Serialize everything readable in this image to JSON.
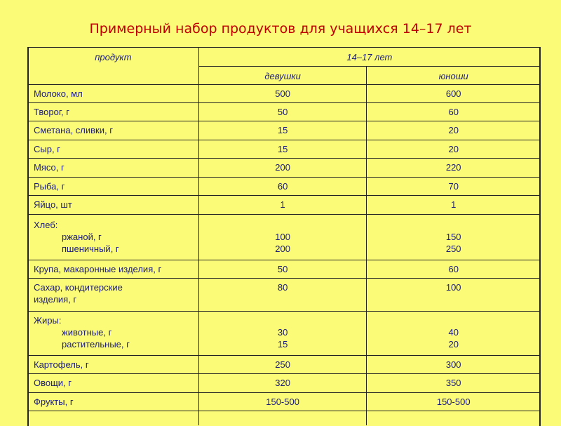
{
  "title": "Примерный набор продуктов для учащихся 14–17 лет",
  "header": {
    "product": "продукт",
    "age": "14–17 лет",
    "girls": "девушки",
    "boys": "юноши"
  },
  "rows": [
    {
      "product": "Молоко, мл",
      "girls": "500",
      "boys": "600"
    },
    {
      "product": "Творог, г",
      "girls": "50",
      "boys": "60"
    },
    {
      "product": "Сметана, сливки, г",
      "girls": "15",
      "boys": "20"
    },
    {
      "product": "Сыр, г",
      "girls": "15",
      "boys": "20"
    },
    {
      "product": "Мясо, г",
      "girls": "200",
      "boys": "220"
    },
    {
      "product": "Рыба, г",
      "girls": "60",
      "boys": "70"
    },
    {
      "product": "Яйцо, шт",
      "girls": "1",
      "boys": "1"
    }
  ],
  "bread": {
    "product": "Хлеб:",
    "sub": [
      {
        "product": "ржаной, г",
        "girls": "100",
        "boys": "150"
      },
      {
        "product": "пшеничный, г",
        "girls": "200",
        "boys": "250"
      }
    ]
  },
  "cereal": {
    "product": "Крупа, макаронные  изделия, г",
    "girls": "50",
    "boys": "60"
  },
  "sugar": {
    "product_line1": "Сахар, кондитерские",
    "product_line2": "изделия, г",
    "girls": "80",
    "boys": "100"
  },
  "fats": {
    "product": "Жиры:",
    "sub": [
      {
        "product": "животные, г",
        "girls": "30",
        "boys": "40"
      },
      {
        "product": "растительные, г",
        "girls": "15",
        "boys": "20"
      }
    ]
  },
  "rows2": [
    {
      "product": "Картофель, г",
      "girls": "250",
      "boys": "300"
    },
    {
      "product": "Овощи, г",
      "girls": "320",
      "boys": "350"
    },
    {
      "product": "Фрукты, г",
      "girls": "150-500",
      "boys": "150-500"
    }
  ],
  "colors": {
    "background": "#fbfb77",
    "title": "#c00000",
    "text": "#1c1c7a"
  }
}
